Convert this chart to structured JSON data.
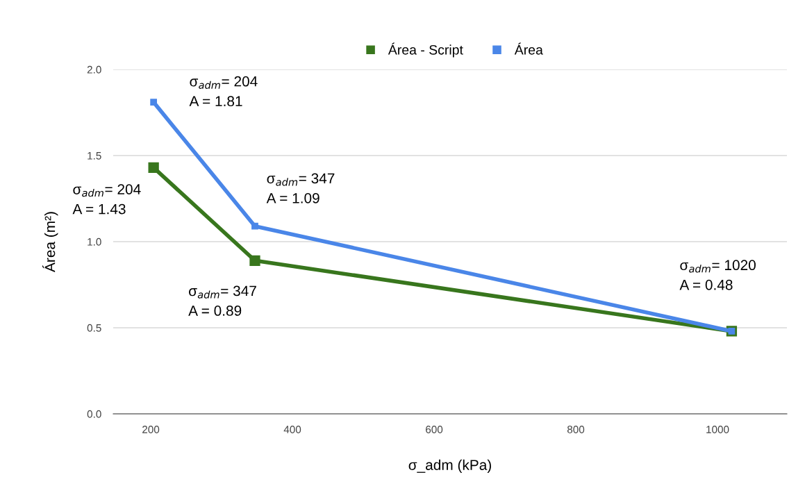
{
  "chart_data": {
    "type": "line",
    "xlabel": "σ_adm (kPa)",
    "ylabel": "Área (m²)",
    "series": [
      {
        "name": "Área - Script",
        "color": "#38761d",
        "x": [
          204,
          347,
          1020
        ],
        "values": [
          1.43,
          0.89,
          0.48
        ]
      },
      {
        "name": "Área",
        "color": "#4a86e8",
        "x": [
          204,
          347,
          1020
        ],
        "values": [
          1.81,
          1.09,
          0.48
        ]
      }
    ],
    "xlim": [
      147,
      1098
    ],
    "xticks": [
      200,
      400,
      600,
      800,
      1000
    ],
    "ylim": [
      0,
      2.0
    ],
    "yticks": [
      {
        "value": 0,
        "label": "0.0"
      },
      {
        "value": 0.5,
        "label": "0.5"
      },
      {
        "value": 1.0,
        "label": "1.0"
      },
      {
        "value": 1.5,
        "label": "1.5"
      },
      {
        "value": 2.0,
        "label": "2.0"
      }
    ],
    "grid": "y",
    "legend": "top",
    "marker": "square",
    "line_style": "solid",
    "annotations": [
      {
        "text": "σ$_{adm}$= 204\nA = 1.81",
        "x": 204,
        "y": 1.81
      },
      {
        "text": "σ$_{adm}$= 204\nA = 1.43",
        "x": 204,
        "y": 1.43
      },
      {
        "text": "σ$_{adm}$= 347\nA = 1.09",
        "x": 347,
        "y": 1.09
      },
      {
        "text": "σ$_{adm}$= 347\nA = 0.89",
        "x": 347,
        "y": 0.89
      },
      {
        "text": "σ$_{adm}$= 1020\nA = 0.48",
        "x": 1020,
        "y": 0.48
      }
    ]
  }
}
